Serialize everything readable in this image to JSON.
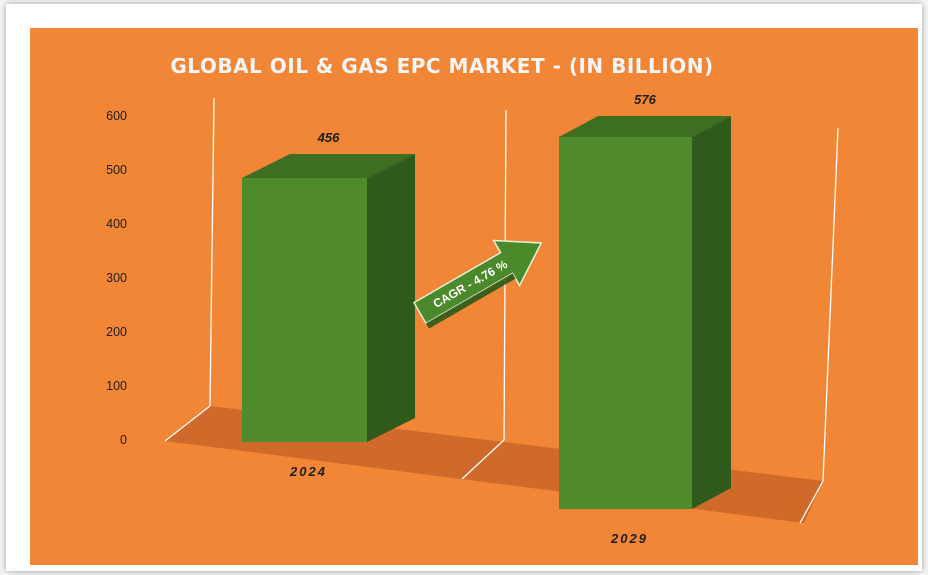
{
  "chart_data": {
    "type": "bar",
    "title": "GLOBAL OIL & GAS EPC MARKET - (IN BILLION)",
    "categories": [
      "2024",
      "2029"
    ],
    "values": [
      456,
      576
    ],
    "ylim": [
      0,
      600
    ],
    "yticks": [
      0,
      100,
      200,
      300,
      400,
      500,
      600
    ],
    "data_labels": [
      "456",
      "576"
    ],
    "annotation": "CAGR - 4.76 %",
    "grid": false,
    "colors": {
      "background": "#f08636",
      "bar_front": "#4f8a2c",
      "bar_side": "#2f5a1c",
      "bar_top": "#3e6e22",
      "floor": "#cf6a2a",
      "text": "#1e1e1e",
      "title": "#f6f6f6"
    }
  }
}
